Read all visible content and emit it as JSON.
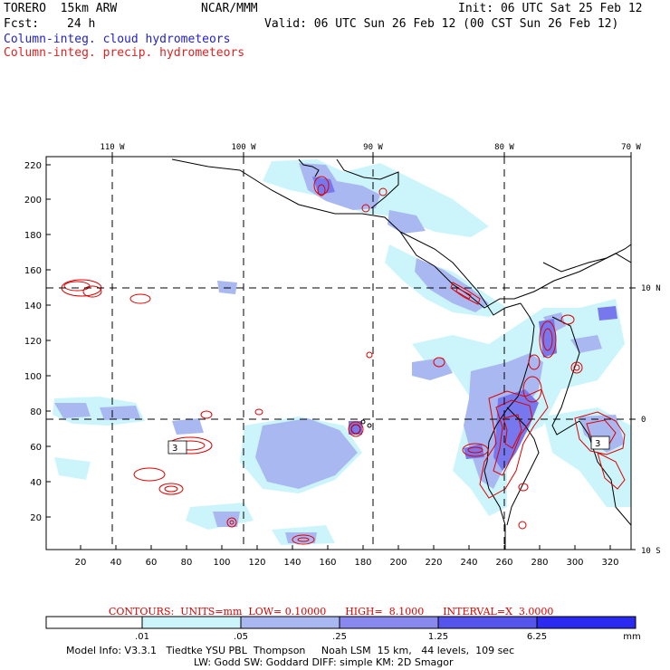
{
  "header": {
    "model": "TORERO  15km ARW",
    "org": "NCAR/MMM",
    "init": "Init: 06 UTC Sat 25 Feb 12",
    "fcst_label": "Fcst:",
    "fcst_value": "24 h",
    "valid": "Valid: 06 UTC Sun 26 Feb 12 (00 CST Sun 26 Feb 12)",
    "field1": "Column-integ. cloud hydrometeors",
    "field2": "Column-integ. precip. hydrometeors"
  },
  "map": {
    "lon_labels": [
      "110 W",
      "100 W",
      "90 W",
      "80 W",
      "70 W"
    ],
    "lat_labels": [
      "10 N",
      "0",
      "10 S"
    ],
    "y_ticks": [
      "220",
      "200",
      "180",
      "160",
      "140",
      "120",
      "100",
      "80",
      "60",
      "40",
      "20"
    ],
    "x_ticks": [
      "20",
      "40",
      "60",
      "80",
      "100",
      "120",
      "140",
      "160",
      "180",
      "200",
      "220",
      "240",
      "260",
      "280",
      "300",
      "320"
    ],
    "contour_labels": [
      "3",
      "3"
    ]
  },
  "legend": {
    "contours_text": "CONTOURS:  UNITS=mm  LOW= 0.10000      HIGH=  8.1000      INTERVAL=X  3.0000",
    "bin_labels": [
      ".01",
      ".05",
      ".25",
      "1.25",
      "6.25"
    ],
    "unit": "mm",
    "colors": [
      "#ffffff",
      "#ccf5fb",
      "#aab8f2",
      "#8888ee",
      "#5555ee",
      "#2a2af0"
    ]
  },
  "footer": {
    "line1": "Model Info: V3.3.1   Tiedtke YSU PBL  Thompson     Noah LSM  15 km,   44 levels,  109 sec",
    "line2": "LW: Godd SW: Goddard DIFF: simple KM: 2D Smagor"
  },
  "colors": {
    "cloud_text": "#2222cc",
    "precip_text": "#dd2222",
    "contour_line": "#dd0000"
  }
}
